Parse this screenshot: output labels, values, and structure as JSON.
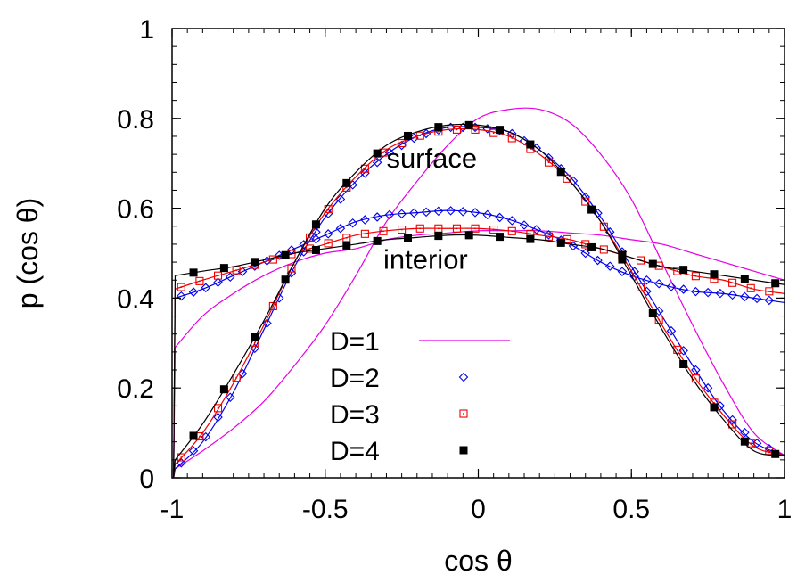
{
  "chart_data": {
    "type": "line",
    "xlabel": "cos θ",
    "ylabel": "p (cos θ)",
    "xlim": [
      -1,
      1
    ],
    "ylim": [
      0,
      1
    ],
    "xticks": [
      -1,
      -0.5,
      0,
      0.5,
      1
    ],
    "xtick_labels": [
      "-1",
      "-0.5",
      "0",
      "0.5",
      "1"
    ],
    "yticks": [
      0,
      0.2,
      0.4,
      0.6,
      0.8,
      1
    ],
    "ytick_labels": [
      "0",
      "0.2",
      "0.4",
      "0.6",
      "0.8",
      "1"
    ],
    "grid": false,
    "legend_position": "bottom-center",
    "annotations": [
      {
        "text": "surface",
        "x": -0.3,
        "y": 0.69
      },
      {
        "text": "interior",
        "x": -0.31,
        "y": 0.465
      }
    ],
    "series": [
      {
        "name": "D=1",
        "color": "#e600e6",
        "style": "line",
        "curves": [
          {
            "x": [
              -0.99,
              -0.9,
              -0.8,
              -0.7,
              -0.6,
              -0.5,
              -0.4,
              -0.3,
              -0.2,
              -0.1,
              0,
              0.1,
              0.2,
              0.3,
              0.4,
              0.5,
              0.6,
              0.7,
              0.8,
              0.9,
              1.0
            ],
            "y": [
              0.02,
              0.06,
              0.11,
              0.17,
              0.25,
              0.34,
              0.45,
              0.57,
              0.66,
              0.74,
              0.8,
              0.82,
              0.82,
              0.79,
              0.72,
              0.62,
              0.48,
              0.34,
              0.21,
              0.1,
              0.05
            ]
          },
          {
            "x": [
              -0.99,
              -0.9,
              -0.8,
              -0.7,
              -0.6,
              -0.5,
              -0.4,
              -0.3,
              -0.2,
              -0.1,
              0,
              0.1,
              0.2,
              0.3,
              0.4,
              0.5,
              0.6,
              0.7,
              0.8,
              0.9,
              1.0
            ],
            "y": [
              0.29,
              0.36,
              0.41,
              0.45,
              0.48,
              0.5,
              0.51,
              0.53,
              0.54,
              0.545,
              0.55,
              0.55,
              0.55,
              0.545,
              0.54,
              0.53,
              0.52,
              0.5,
              0.48,
              0.46,
              0.44
            ]
          }
        ]
      },
      {
        "name": "D=2",
        "color": "#0000ee",
        "style": "diamond",
        "curves": [
          {
            "x": [
              -0.99,
              -0.9,
              -0.8,
              -0.7,
              -0.6,
              -0.5,
              -0.4,
              -0.3,
              -0.2,
              -0.1,
              0,
              0.1,
              0.2,
              0.3,
              0.4,
              0.5,
              0.6,
              0.7,
              0.8,
              0.9,
              1.0
            ],
            "y": [
              0.02,
              0.08,
              0.19,
              0.33,
              0.47,
              0.58,
              0.66,
              0.72,
              0.76,
              0.78,
              0.78,
              0.77,
              0.73,
              0.67,
              0.58,
              0.47,
              0.36,
              0.25,
              0.15,
              0.08,
              0.05
            ]
          },
          {
            "x": [
              -0.99,
              -0.9,
              -0.8,
              -0.7,
              -0.6,
              -0.5,
              -0.4,
              -0.3,
              -0.2,
              -0.1,
              0,
              0.1,
              0.2,
              0.3,
              0.4,
              0.5,
              0.6,
              0.7,
              0.8,
              0.9,
              1.0
            ],
            "y": [
              0.4,
              0.42,
              0.45,
              0.48,
              0.51,
              0.54,
              0.57,
              0.585,
              0.59,
              0.595,
              0.59,
              0.575,
              0.55,
              0.52,
              0.48,
              0.45,
              0.43,
              0.415,
              0.41,
              0.4,
              0.39
            ]
          }
        ]
      },
      {
        "name": "D=3",
        "color": "#ee0000",
        "style": "square-open",
        "curves": [
          {
            "x": [
              -0.99,
              -0.9,
              -0.8,
              -0.7,
              -0.6,
              -0.5,
              -0.4,
              -0.3,
              -0.2,
              -0.1,
              0,
              0.1,
              0.2,
              0.3,
              0.4,
              0.5,
              0.6,
              0.7,
              0.8,
              0.9,
              1.0
            ],
            "y": [
              0.03,
              0.1,
              0.21,
              0.34,
              0.48,
              0.59,
              0.67,
              0.73,
              0.76,
              0.775,
              0.775,
              0.76,
              0.72,
              0.66,
              0.57,
              0.46,
              0.34,
              0.23,
              0.14,
              0.07,
              0.05
            ]
          },
          {
            "x": [
              -0.99,
              -0.9,
              -0.8,
              -0.7,
              -0.6,
              -0.5,
              -0.4,
              -0.3,
              -0.2,
              -0.1,
              0,
              0.1,
              0.2,
              0.3,
              0.4,
              0.5,
              0.6,
              0.7,
              0.8,
              0.9,
              1.0
            ],
            "y": [
              0.42,
              0.44,
              0.46,
              0.48,
              0.5,
              0.52,
              0.54,
              0.55,
              0.555,
              0.555,
              0.555,
              0.55,
              0.54,
              0.53,
              0.51,
              0.49,
              0.47,
              0.45,
              0.44,
              0.42,
              0.41
            ]
          }
        ]
      },
      {
        "name": "D=4",
        "color": "#000000",
        "style": "square-filled",
        "curves": [
          {
            "x": [
              -0.99,
              -0.9,
              -0.8,
              -0.7,
              -0.6,
              -0.5,
              -0.4,
              -0.3,
              -0.2,
              -0.1,
              0,
              0.1,
              0.2,
              0.3,
              0.4,
              0.5,
              0.6,
              0.7,
              0.8,
              0.9,
              1.0
            ],
            "y": [
              0.04,
              0.12,
              0.23,
              0.35,
              0.48,
              0.6,
              0.68,
              0.74,
              0.77,
              0.785,
              0.785,
              0.77,
              0.73,
              0.66,
              0.57,
              0.45,
              0.33,
              0.22,
              0.13,
              0.06,
              0.05
            ]
          },
          {
            "x": [
              -0.99,
              -0.9,
              -0.8,
              -0.7,
              -0.6,
              -0.5,
              -0.4,
              -0.3,
              -0.2,
              -0.1,
              0,
              0.1,
              0.2,
              0.3,
              0.4,
              0.5,
              0.6,
              0.7,
              0.8,
              0.9,
              1.0
            ],
            "y": [
              0.45,
              0.46,
              0.47,
              0.485,
              0.5,
              0.51,
              0.52,
              0.53,
              0.535,
              0.54,
              0.54,
              0.535,
              0.53,
              0.52,
              0.51,
              0.49,
              0.47,
              0.46,
              0.45,
              0.44,
              0.43
            ]
          }
        ]
      }
    ]
  }
}
